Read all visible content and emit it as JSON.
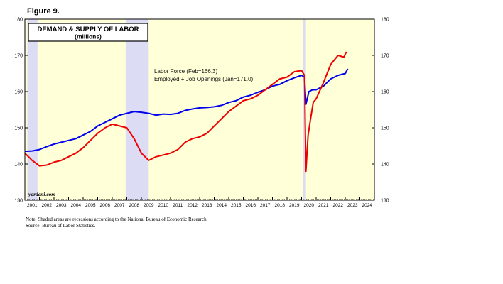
{
  "figure_label": "Figure 9.",
  "chart_data": {
    "type": "line",
    "title": "DEMAND & SUPPLY OF LABOR",
    "subtitle": "(millions)",
    "ylim": [
      130,
      180
    ],
    "y_ticks": [
      130,
      140,
      150,
      160,
      170,
      180
    ],
    "xlim": [
      2001.0,
      2025.0
    ],
    "x_ticks": [
      "2001",
      "2002",
      "2003",
      "2004",
      "2005",
      "2006",
      "2007",
      "2008",
      "2009",
      "2010",
      "2011",
      "2012",
      "2013",
      "2014",
      "2015",
      "2016",
      "2017",
      "2018",
      "2019",
      "2020",
      "2021",
      "2022",
      "2023",
      "2024"
    ],
    "recessions": [
      [
        2001.17,
        2001.87
      ],
      [
        2007.92,
        2009.5
      ],
      [
        2020.08,
        2020.3
      ]
    ],
    "background_color": "#ffffd8",
    "recession_color": "#dcdcf5",
    "series": [
      {
        "name": "Labor Force (Feb=166.3)",
        "color": "#0000ee",
        "x": [
          2001.0,
          2001.5,
          2002.0,
          2002.5,
          2003.0,
          2003.5,
          2004.0,
          2004.5,
          2005.0,
          2005.5,
          2006.0,
          2006.5,
          2007.0,
          2007.5,
          2008.0,
          2008.5,
          2009.0,
          2009.5,
          2010.0,
          2010.5,
          2011.0,
          2011.5,
          2012.0,
          2012.5,
          2013.0,
          2013.5,
          2014.0,
          2014.5,
          2015.0,
          2015.5,
          2016.0,
          2016.5,
          2017.0,
          2017.5,
          2018.0,
          2018.5,
          2019.0,
          2019.5,
          2020.0,
          2020.2,
          2020.3,
          2020.5,
          2020.75,
          2021.0,
          2021.5,
          2022.0,
          2022.5,
          2023.0,
          2023.17
        ],
        "values": [
          143.5,
          143.6,
          144.0,
          144.8,
          145.5,
          146.0,
          146.5,
          147.0,
          148.0,
          149.0,
          150.5,
          151.5,
          152.5,
          153.5,
          154.0,
          154.5,
          154.3,
          154.0,
          153.5,
          153.8,
          153.7,
          154.0,
          154.8,
          155.2,
          155.5,
          155.6,
          155.8,
          156.2,
          157.0,
          157.5,
          158.5,
          159.0,
          159.8,
          160.5,
          161.5,
          162.0,
          163.0,
          163.8,
          164.5,
          164.0,
          156.5,
          160.0,
          160.5,
          160.5,
          161.5,
          163.5,
          164.5,
          165.0,
          166.3
        ]
      },
      {
        "name": "Employed + Job Openings (Jan=171.0)",
        "color": "#ee0000",
        "x": [
          2001.0,
          2001.5,
          2002.0,
          2002.5,
          2003.0,
          2003.5,
          2004.0,
          2004.5,
          2005.0,
          2005.5,
          2006.0,
          2006.5,
          2007.0,
          2007.5,
          2008.0,
          2008.5,
          2009.0,
          2009.5,
          2010.0,
          2010.5,
          2011.0,
          2011.5,
          2012.0,
          2012.5,
          2013.0,
          2013.5,
          2014.0,
          2014.5,
          2015.0,
          2015.5,
          2016.0,
          2016.5,
          2017.0,
          2017.5,
          2018.0,
          2018.5,
          2019.0,
          2019.5,
          2020.0,
          2020.2,
          2020.3,
          2020.45,
          2020.6,
          2020.8,
          2021.0,
          2021.5,
          2022.0,
          2022.5,
          2022.9,
          2023.08
        ],
        "values": [
          143.0,
          141.0,
          139.5,
          139.7,
          140.5,
          141.0,
          142.0,
          143.0,
          144.5,
          146.5,
          148.5,
          150.0,
          151.0,
          150.5,
          150.0,
          147.0,
          143.0,
          141.0,
          142.0,
          142.5,
          143.0,
          144.0,
          146.0,
          147.0,
          147.5,
          148.5,
          150.5,
          152.5,
          154.5,
          156.0,
          157.5,
          158.0,
          159.0,
          160.5,
          162.0,
          163.5,
          164.0,
          165.5,
          165.8,
          164.5,
          138.0,
          148.0,
          152.0,
          157.0,
          158.0,
          162.5,
          167.5,
          170.0,
          169.5,
          171.0
        ]
      }
    ],
    "annotation_lines": [
      "Labor Force (Feb=166.3)",
      "Employed + Job Openings (Jan=171.0)"
    ],
    "source_mark": "yardeni.com",
    "grid": false,
    "legend": "none"
  },
  "notes": [
    "Note: Shaded areas are recessions according to the National Bureau of Economic Research.",
    "Source: Bureau of Labor Statistics."
  ]
}
